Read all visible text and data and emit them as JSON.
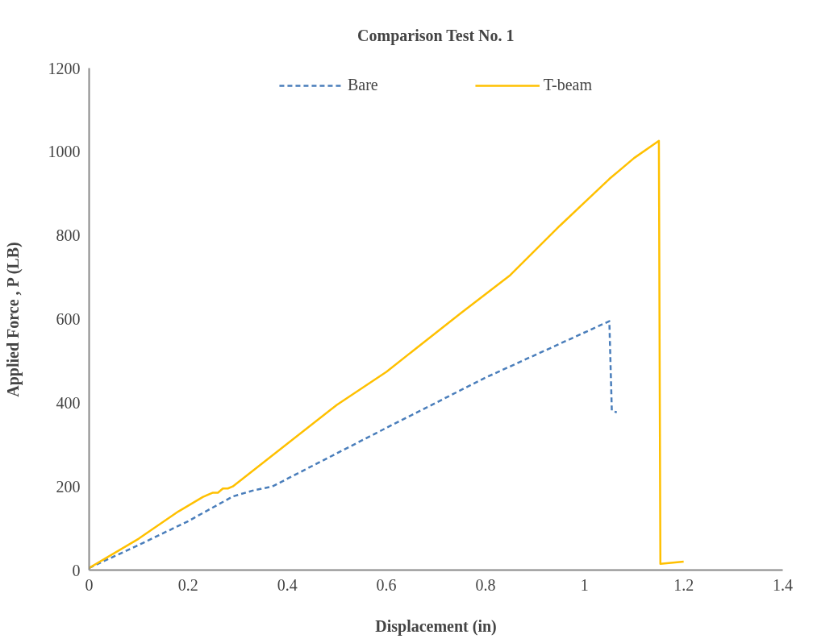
{
  "chart_data": {
    "type": "line",
    "title": "Comparison Test No. 1",
    "xlabel": "Displacement (in)",
    "ylabel": "Applied Force , P (LB)",
    "xlim": [
      0,
      1.4
    ],
    "xticks": [
      0,
      0.2,
      0.4,
      0.6,
      0.8,
      1,
      1.2,
      1.4
    ],
    "ylim": [
      0,
      1200
    ],
    "yticks": [
      0,
      200,
      400,
      600,
      800,
      1000,
      1200
    ],
    "grid": false,
    "legend": "top",
    "marker": "none",
    "series": [
      {
        "name": "Bare",
        "color": "#4a7ebb",
        "line_style": "dashed",
        "x": [
          0,
          0.1,
          0.2,
          0.29,
          0.33,
          0.37,
          0.6,
          0.8,
          1.05,
          1.055,
          1.065
        ],
        "values": [
          5,
          60,
          117,
          176,
          190,
          200,
          340,
          460,
          595,
          381,
          377
        ]
      },
      {
        "name": "T-beam",
        "color": "#ffc000",
        "line_style": "solid",
        "x": [
          0,
          0.1,
          0.18,
          0.23,
          0.25,
          0.26,
          0.27,
          0.28,
          0.29,
          0.5,
          0.6,
          0.75,
          0.85,
          0.95,
          1.05,
          1.1,
          1.15,
          1.153,
          1.2
        ],
        "values": [
          5,
          75,
          140,
          175,
          185,
          185,
          195,
          195,
          200,
          395,
          474,
          614,
          705,
          823,
          935,
          985,
          1026,
          15,
          20
        ]
      }
    ]
  }
}
